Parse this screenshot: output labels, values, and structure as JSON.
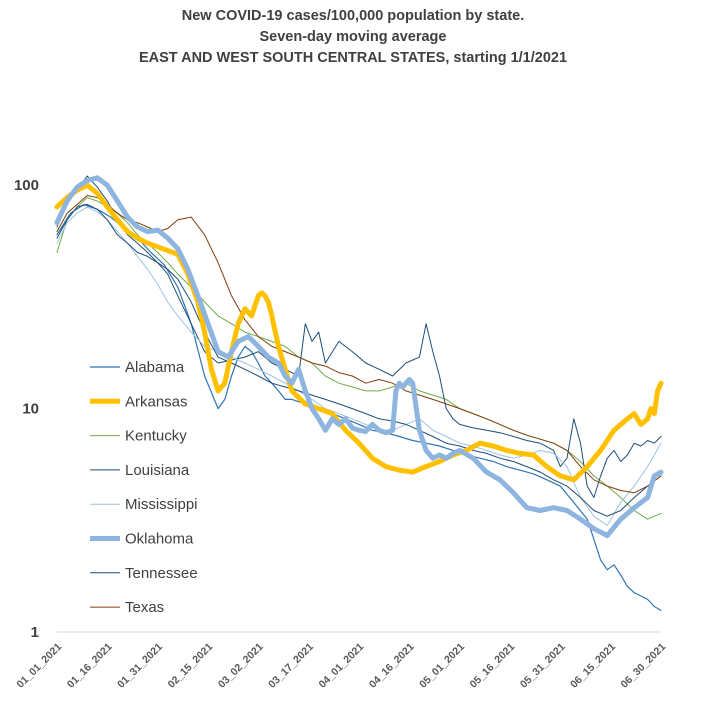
{
  "chart_data": {
    "type": "line",
    "title_lines": [
      "New COVID-19 cases/100,000 population by state.",
      "Seven-day moving average",
      "EAST AND WEST SOUTH CENTRAL STATES, starting 1/1/2021"
    ],
    "yscale": "log",
    "ylim": [
      1,
      200
    ],
    "yticks": [
      1,
      10,
      100
    ],
    "ytick_labels": [
      "1",
      "10",
      "100"
    ],
    "xlim": [
      "01_01_2021",
      "06_30_2021"
    ],
    "xtick_labels": [
      "01_01_2021",
      "01_16_2021",
      "01_31_2021",
      "02_15_2021",
      "03_02_2021",
      "03_17_2021",
      "04_01_2021",
      "04_16_2021",
      "05_01_2021",
      "05_16_2021",
      "05_31_2021",
      "06_15_2021",
      "06_30_2021"
    ],
    "xtick_days": [
      0,
      15,
      30,
      45,
      60,
      75,
      90,
      105,
      120,
      135,
      150,
      165,
      180
    ],
    "grid": false,
    "legend_position": "left-middle",
    "series": [
      {
        "name": "Alabama",
        "color": "#2e75b6",
        "width": 1.2,
        "x": [
          0,
          4,
          8,
          12,
          16,
          20,
          24,
          28,
          32,
          36,
          40,
          44,
          48,
          50,
          52,
          54,
          56,
          58,
          60,
          62,
          64,
          66,
          68,
          70,
          74,
          78,
          82,
          86,
          90,
          94,
          98,
          102,
          106,
          110,
          114,
          118,
          122,
          126,
          130,
          134,
          138,
          142,
          146,
          150,
          154,
          158,
          160,
          162,
          164,
          166,
          168,
          170,
          172,
          174,
          176,
          178,
          180
        ],
        "values": [
          60,
          75,
          82,
          78,
          72,
          64,
          58,
          50,
          44,
          35,
          24,
          14,
          10,
          11,
          14,
          17,
          19,
          18,
          16,
          14,
          13,
          12,
          11,
          11,
          10.5,
          10,
          9.5,
          9,
          8.5,
          8,
          7.8,
          7.5,
          7.2,
          7,
          6.8,
          6.5,
          6.2,
          6,
          5.8,
          5.5,
          5.3,
          5.1,
          4.8,
          4.5,
          3.8,
          3.2,
          2.6,
          2.1,
          1.9,
          2.0,
          1.8,
          1.6,
          1.5,
          1.45,
          1.4,
          1.3,
          1.25
        ]
      },
      {
        "name": "Arkansas",
        "color": "#ffc000",
        "width": 5,
        "x": [
          0,
          3,
          6,
          9,
          12,
          15,
          18,
          21,
          24,
          27,
          30,
          33,
          36,
          39,
          42,
          44,
          46,
          48,
          50,
          52,
          54,
          56,
          58,
          60,
          61,
          62,
          63,
          64,
          66,
          68,
          70,
          74,
          78,
          82,
          86,
          90,
          94,
          98,
          102,
          106,
          110,
          114,
          118,
          122,
          126,
          130,
          134,
          138,
          142,
          146,
          150,
          154,
          158,
          162,
          166,
          170,
          172,
          174,
          176,
          177,
          178,
          179,
          180
        ],
        "values": [
          80,
          88,
          95,
          100,
          92,
          80,
          70,
          62,
          58,
          55,
          53,
          51,
          49,
          40,
          30,
          22,
          15,
          12,
          13,
          18,
          24,
          28,
          26,
          32,
          33,
          32,
          30,
          26,
          19,
          15,
          12,
          10.5,
          10,
          9.5,
          8,
          7,
          6,
          5.5,
          5.3,
          5.2,
          5.5,
          5.8,
          6.2,
          6.5,
          7,
          6.8,
          6.5,
          6.3,
          6.2,
          5.5,
          5,
          4.8,
          5.5,
          6.5,
          8,
          9,
          9.5,
          8.5,
          9,
          10,
          9.5,
          12,
          13
        ]
      },
      {
        "name": "Kentucky",
        "color": "#70ad47",
        "width": 1,
        "x": [
          0,
          3,
          6,
          9,
          12,
          15,
          18,
          21,
          24,
          27,
          30,
          33,
          36,
          40,
          44,
          48,
          52,
          56,
          60,
          64,
          68,
          72,
          76,
          80,
          84,
          88,
          92,
          96,
          100,
          104,
          108,
          112,
          116,
          120,
          124,
          128,
          132,
          136,
          140,
          144,
          148,
          152,
          156,
          160,
          164,
          168,
          172,
          176,
          180
        ],
        "values": [
          50,
          70,
          80,
          88,
          85,
          80,
          75,
          68,
          60,
          55,
          50,
          45,
          40,
          35,
          30,
          26,
          24,
          22,
          21,
          20,
          19,
          17,
          16,
          14,
          13,
          12.5,
          12,
          12,
          12.5,
          13,
          12,
          11.5,
          11,
          10,
          9.5,
          9,
          8.5,
          8,
          7.6,
          7.3,
          7,
          6.5,
          5.8,
          5,
          4.5,
          4,
          3.5,
          3.2,
          3.4
        ]
      },
      {
        "name": "Louisiana",
        "color": "#1f4e79",
        "width": 1,
        "x": [
          0,
          3,
          6,
          9,
          12,
          15,
          18,
          21,
          24,
          27,
          30,
          33,
          36,
          40,
          44,
          48,
          52,
          56,
          60,
          64,
          68,
          72,
          74,
          76,
          78,
          80,
          84,
          88,
          92,
          96,
          100,
          104,
          108,
          110,
          112,
          114,
          116,
          118,
          120,
          124,
          128,
          132,
          136,
          140,
          144,
          148,
          150,
          152,
          154,
          156,
          158,
          160,
          162,
          164,
          166,
          168,
          170,
          172,
          174,
          176,
          178,
          180
        ],
        "values": [
          65,
          85,
          95,
          110,
          98,
          85,
          70,
          60,
          55,
          50,
          45,
          40,
          32,
          24,
          18,
          16,
          16.5,
          17,
          18,
          16,
          15,
          14,
          24,
          20,
          22,
          16,
          20,
          18,
          16,
          15,
          14,
          16,
          17,
          24,
          18,
          14,
          10,
          9,
          8.5,
          8.2,
          8,
          7.8,
          7.5,
          7.2,
          7,
          6.5,
          5.5,
          6,
          9,
          7,
          4.5,
          4,
          5,
          6,
          6.5,
          5.8,
          6.2,
          7,
          6.8,
          7.2,
          7,
          7.5
        ]
      },
      {
        "name": "Mississippi",
        "color": "#9dc3e6",
        "width": 1,
        "x": [
          0,
          3,
          6,
          9,
          12,
          15,
          18,
          21,
          24,
          27,
          30,
          33,
          36,
          40,
          44,
          48,
          52,
          56,
          60,
          64,
          68,
          72,
          76,
          80,
          84,
          88,
          92,
          96,
          100,
          104,
          108,
          112,
          116,
          120,
          124,
          128,
          132,
          136,
          140,
          144,
          148,
          152,
          156,
          160,
          164,
          168,
          172,
          176,
          180
        ],
        "values": [
          55,
          68,
          75,
          80,
          76,
          70,
          62,
          55,
          48,
          42,
          36,
          30,
          26,
          22,
          19,
          18,
          17,
          16,
          15,
          14,
          13,
          12,
          11,
          10,
          9.5,
          9,
          8.5,
          8,
          8,
          8.5,
          9,
          8,
          7.5,
          7,
          6.8,
          6.5,
          6.2,
          6,
          6.2,
          6.5,
          6.3,
          5.5,
          4,
          3.3,
          3,
          3.8,
          4.5,
          5.5,
          7
        ]
      },
      {
        "name": "Oklahoma",
        "color": "#8eb4e0",
        "width": 5,
        "x": [
          0,
          3,
          6,
          9,
          12,
          15,
          18,
          21,
          24,
          27,
          30,
          33,
          36,
          39,
          42,
          45,
          48,
          51,
          54,
          57,
          60,
          63,
          66,
          68,
          70,
          72,
          74,
          76,
          78,
          80,
          82,
          84,
          86,
          88,
          90,
          92,
          94,
          96,
          98,
          100,
          101,
          102,
          103,
          104,
          105,
          106,
          108,
          110,
          112,
          114,
          116,
          118,
          120,
          124,
          128,
          132,
          136,
          140,
          144,
          148,
          152,
          156,
          160,
          164,
          168,
          172,
          176,
          178,
          180
        ],
        "values": [
          68,
          85,
          98,
          105,
          108,
          100,
          85,
          72,
          65,
          62,
          63,
          58,
          52,
          42,
          32,
          24,
          18,
          17,
          20,
          21,
          19,
          17,
          16,
          14,
          13,
          15,
          12,
          10,
          9,
          8,
          9,
          8.5,
          9,
          8.2,
          8,
          7.9,
          8.5,
          8,
          7.8,
          8,
          12,
          13,
          12.5,
          13,
          13.5,
          13,
          8,
          6.5,
          6,
          6.2,
          6,
          6.3,
          6.5,
          6,
          5.2,
          4.8,
          4.2,
          3.6,
          3.5,
          3.6,
          3.5,
          3.2,
          2.9,
          2.7,
          3.2,
          3.6,
          4,
          5,
          5.2
        ]
      },
      {
        "name": "Tennessee",
        "color": "#1f4e79",
        "width": 1,
        "x": [
          0,
          3,
          6,
          9,
          12,
          15,
          18,
          21,
          24,
          27,
          30,
          33,
          36,
          40,
          44,
          48,
          52,
          56,
          60,
          64,
          68,
          72,
          76,
          80,
          84,
          88,
          92,
          96,
          100,
          104,
          108,
          112,
          116,
          120,
          124,
          128,
          132,
          136,
          140,
          144,
          148,
          152,
          156,
          160,
          164,
          168,
          172,
          176,
          180
        ],
        "values": [
          58,
          70,
          80,
          82,
          78,
          70,
          60,
          55,
          50,
          48,
          45,
          42,
          38,
          30,
          22,
          17,
          16,
          15,
          14,
          13,
          12.5,
          12,
          11.5,
          11,
          10.5,
          10,
          9.5,
          9,
          8.8,
          8.5,
          8,
          7.5,
          7,
          6.8,
          6.5,
          6.3,
          6,
          5.8,
          5.5,
          5.2,
          4.8,
          4.5,
          4,
          3.5,
          3.3,
          3.5,
          4,
          4.5,
          5
        ]
      },
      {
        "name": "Texas",
        "color": "#843c0c",
        "width": 1,
        "x": [
          0,
          3,
          6,
          9,
          12,
          15,
          18,
          21,
          24,
          27,
          30,
          33,
          36,
          40,
          44,
          48,
          52,
          56,
          60,
          64,
          68,
          72,
          76,
          80,
          84,
          88,
          92,
          96,
          100,
          104,
          108,
          112,
          116,
          120,
          124,
          128,
          132,
          136,
          140,
          144,
          148,
          152,
          156,
          160,
          164,
          168,
          172,
          176,
          180
        ],
        "values": [
          62,
          75,
          82,
          90,
          88,
          82,
          75,
          70,
          68,
          65,
          62,
          64,
          70,
          72,
          60,
          45,
          32,
          25,
          21,
          19,
          18,
          17,
          16,
          15.5,
          14.5,
          14,
          13,
          13.5,
          13,
          12,
          11.5,
          11,
          10.5,
          10,
          9.5,
          9,
          8.5,
          8,
          7.6,
          7.3,
          7,
          6.5,
          5.5,
          4.8,
          4.5,
          4.3,
          4.2,
          4.5,
          5
        ]
      }
    ]
  }
}
